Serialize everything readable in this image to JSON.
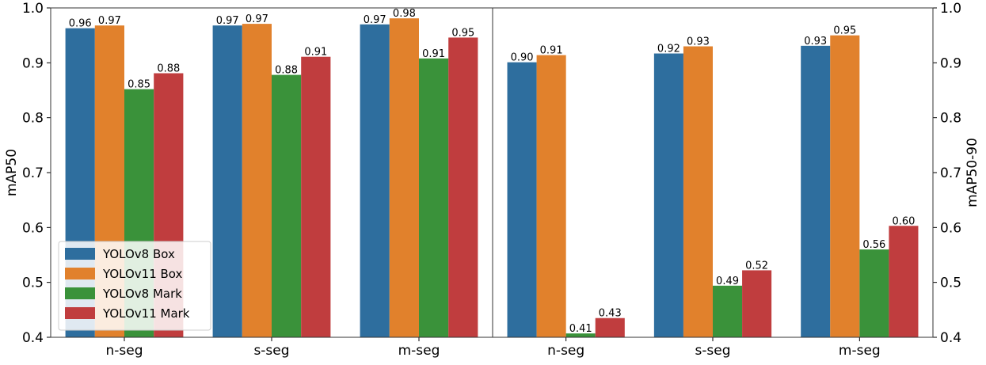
{
  "chart_data": [
    {
      "type": "bar",
      "ylabel": "mAP50",
      "ylim": [
        0.4,
        1.0
      ],
      "yticks": [
        "0.4",
        "0.5",
        "0.6",
        "0.7",
        "0.8",
        "0.9",
        "1.0"
      ],
      "categories": [
        "n-seg",
        "s-seg",
        "m-seg"
      ],
      "series": [
        {
          "name": "YOLOv8 Box",
          "color": "#2e6e9e",
          "values": [
            0.963,
            0.968,
            0.97
          ],
          "labels": [
            "0.96",
            "0.97",
            "0.97"
          ]
        },
        {
          "name": "YOLOv11 Box",
          "color": "#e1812c",
          "values": [
            0.968,
            0.971,
            0.981
          ],
          "labels": [
            "0.97",
            "0.97",
            "0.98"
          ]
        },
        {
          "name": "YOLOv8 Mark",
          "color": "#3a923a",
          "values": [
            0.852,
            0.878,
            0.908
          ],
          "labels": [
            "0.85",
            "0.88",
            "0.91"
          ]
        },
        {
          "name": "YOLOv11 Mark",
          "color": "#c03d3e",
          "values": [
            0.881,
            0.911,
            0.946
          ],
          "labels": [
            "0.88",
            "0.91",
            "0.95"
          ]
        }
      ],
      "legend": "lower-left",
      "grid": false
    },
    {
      "type": "bar",
      "ylabel": "mAP50-90",
      "ylim": [
        0.4,
        1.0
      ],
      "yticks": [
        "0.4",
        "0.5",
        "0.6",
        "0.7",
        "0.8",
        "0.9",
        "1.0"
      ],
      "categories": [
        "n-seg",
        "s-seg",
        "m-seg"
      ],
      "series": [
        {
          "name": "YOLOv8 Box",
          "color": "#2e6e9e",
          "values": [
            0.901,
            0.917,
            0.931
          ],
          "labels": [
            "0.90",
            "0.92",
            "0.93"
          ]
        },
        {
          "name": "YOLOv11 Box",
          "color": "#e1812c",
          "values": [
            0.914,
            0.93,
            0.95
          ],
          "labels": [
            "0.91",
            "0.93",
            "0.95"
          ]
        },
        {
          "name": "YOLOv8 Mark",
          "color": "#3a923a",
          "values": [
            0.407,
            0.494,
            0.56
          ],
          "labels": [
            "0.41",
            "0.49",
            "0.56"
          ]
        },
        {
          "name": "YOLOv11 Mark",
          "color": "#c03d3e",
          "values": [
            0.435,
            0.522,
            0.603
          ],
          "labels": [
            "0.43",
            "0.52",
            "0.60"
          ]
        }
      ],
      "legend": "none",
      "grid": false
    }
  ]
}
